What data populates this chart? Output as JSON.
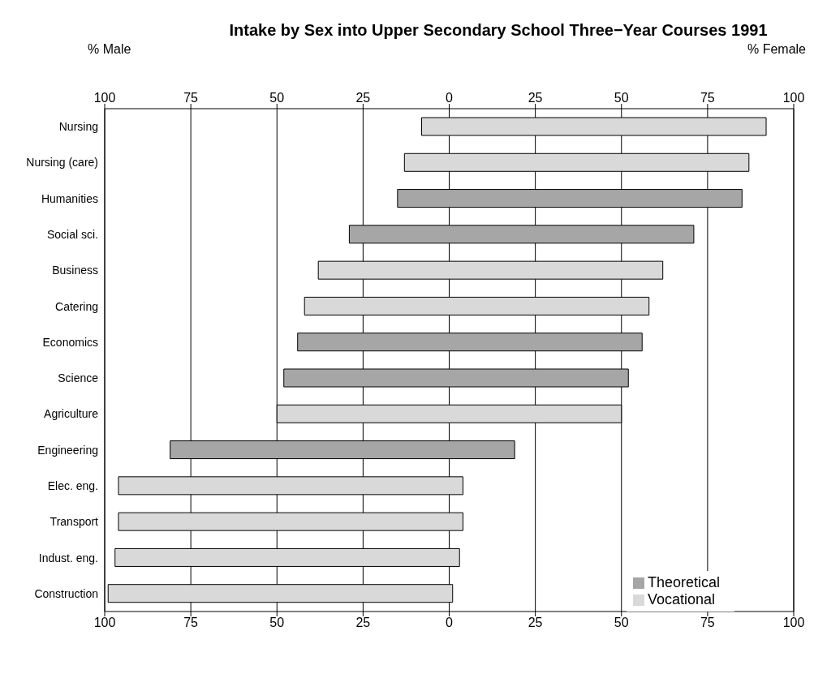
{
  "chart_data": {
    "type": "bar",
    "orientation": "horizontal",
    "title": "Intake by Sex into  Upper Secondary School Three−Year Courses 1991",
    "annotations": [
      "% Male",
      "% Female"
    ],
    "categories": [
      "Nursing",
      "Nursing (care)",
      "Humanities",
      "Social sci.",
      "Business",
      "Catering",
      "Economics",
      "Science",
      "Agriculture",
      "Engineering",
      "Elec. eng.",
      "Transport",
      "Indust. eng.",
      "Construction"
    ],
    "series": [
      {
        "name": "Theoretical",
        "color": "#a6a6a6",
        "base": [
          null,
          null,
          -15,
          -29,
          null,
          null,
          -44,
          -48,
          null,
          -81,
          null,
          null,
          null,
          null
        ],
        "values": [
          null,
          null,
          100,
          100,
          null,
          null,
          100,
          100,
          null,
          100,
          null,
          null,
          null,
          null
        ]
      },
      {
        "name": "Vocational",
        "color": "#d9d9d9",
        "base": [
          -8,
          -13,
          null,
          null,
          -38,
          -42,
          null,
          null,
          -50,
          null,
          -96,
          -96,
          -97,
          -99
        ],
        "values": [
          100,
          100,
          null,
          null,
          100,
          100,
          null,
          null,
          100,
          null,
          100,
          100,
          100,
          100
        ]
      }
    ],
    "xlim": [
      -100,
      100
    ],
    "xticks": [
      {
        "value": -100,
        "label": "100"
      },
      {
        "value": -75,
        "label": "75"
      },
      {
        "value": -50,
        "label": "50"
      },
      {
        "value": -25,
        "label": "25"
      },
      0,
      25,
      50,
      75,
      100
    ],
    "x2lim": [
      -100,
      100
    ],
    "x2ticks": [
      {
        "value": -100,
        "label": "100"
      },
      {
        "value": -75,
        "label": "75"
      },
      {
        "value": -50,
        "label": "50"
      },
      {
        "value": -25,
        "label": "25"
      },
      0,
      25,
      50,
      75,
      100
    ],
    "grid": "x",
    "legend": "bottom right"
  }
}
